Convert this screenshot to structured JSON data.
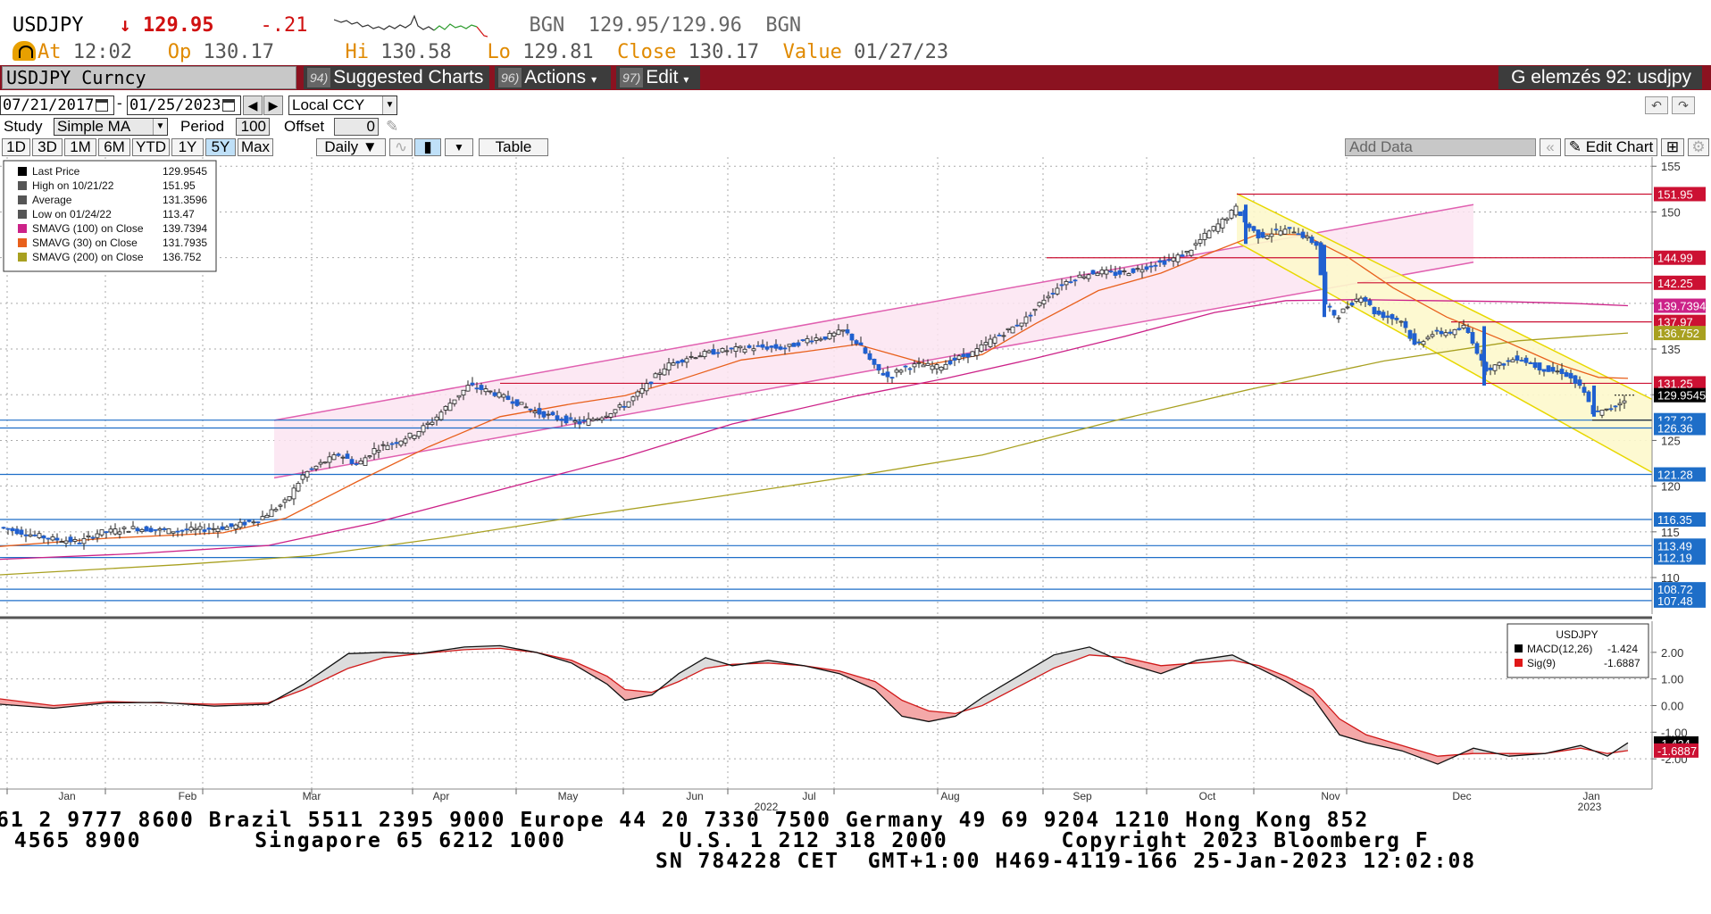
{
  "header": {
    "ticker": "USDJPY",
    "arrow": "↓",
    "last": "129.95",
    "change": "-.21",
    "source": "BGN",
    "bid_ask": "129.95/129.96",
    "source2": "BGN",
    "at_label": "At",
    "at_value": "12:02",
    "open_label": "Op",
    "open_value": "130.17",
    "high_label": "Hi",
    "high_value": "130.58",
    "low_label": "Lo",
    "low_value": "129.81",
    "close_label": "Close",
    "close_value": "130.17",
    "value_label": "Value",
    "value_date": "01/27/23"
  },
  "toolbar": {
    "security": "USDJPY Curncy",
    "suggested_num": "94)",
    "suggested_label": "Suggested Charts",
    "actions_num": "96)",
    "actions_label": "Actions",
    "edit_num": "97)",
    "edit_label": "Edit",
    "title": "G elemzés 92: usdjpy"
  },
  "controls": {
    "start_date": "07/21/2017",
    "dash": "-",
    "end_date": "01/25/2023",
    "currency": "Local CCY",
    "study_label": "Study",
    "study_value": "Simple MA",
    "period_label": "Period",
    "period_value": "100",
    "offset_label": "Offset",
    "offset_value": "0",
    "ranges": [
      "1D",
      "3D",
      "1M",
      "6M",
      "YTD",
      "1Y",
      "5Y",
      "Max"
    ],
    "active_range": "5Y",
    "frequency": "Daily",
    "table_label": "Table",
    "add_data": "Add Data",
    "edit_chart": "Edit Chart"
  },
  "legend": {
    "items": [
      {
        "label": "Last Price",
        "value": "129.9545",
        "color": "#000000"
      },
      {
        "label": "High on 10/21/22",
        "value": "151.95",
        "color": "#555555"
      },
      {
        "label": "Average",
        "value": "131.3596",
        "color": "#555555"
      },
      {
        "label": "Low on 01/24/22",
        "value": "113.47",
        "color": "#555555"
      },
      {
        "label": "SMAVG (100)  on Close",
        "value": "139.7394",
        "color": "#cc2288"
      },
      {
        "label": "SMAVG (30)  on Close",
        "value": "131.7935",
        "color": "#e8601c"
      },
      {
        "label": "SMAVG (200)  on Close",
        "value": "136.752",
        "color": "#a8a020"
      }
    ]
  },
  "macd_legend": {
    "title": "USDJPY",
    "macd_label": "MACD(12,26)",
    "macd_value": "-1.424",
    "sig_label": "Sig(9)",
    "sig_value": "-1.6887"
  },
  "chart_data": {
    "type": "candlestick",
    "title": "USDJPY",
    "price_axis": {
      "range": [
        106,
        156
      ],
      "ticks": [
        110,
        115,
        120,
        125,
        130,
        135,
        140,
        145,
        150,
        155
      ]
    },
    "x_labels": [
      "Jan",
      "Feb",
      "Mar",
      "Apr",
      "May",
      "Jun",
      "Jul",
      "Aug",
      "Sep",
      "Oct",
      "Nov",
      "Dec",
      "Jan"
    ],
    "year_labels": [
      "2022",
      "2023"
    ],
    "last_price": 129.9545,
    "horizontal_levels_red": [
      "151.95",
      "144.99",
      "142.25",
      "137.97",
      "131.25"
    ],
    "horizontal_levels_blue": [
      "127.22",
      "126.36",
      "121.28",
      "116.35",
      "113.49",
      "112.19",
      "108.72",
      "107.48"
    ],
    "price_tags": [
      {
        "text": "151.95",
        "value": 151.95,
        "color": "#cc1133"
      },
      {
        "text": "144.99",
        "value": 144.99,
        "color": "#cc1133"
      },
      {
        "text": "142.25",
        "value": 142.25,
        "color": "#cc1133"
      },
      {
        "text": "139.7394",
        "value": 139.7394,
        "color": "#cc2288"
      },
      {
        "text": "137.97",
        "value": 137.97,
        "color": "#cc1133"
      },
      {
        "text": "136.752",
        "value": 136.752,
        "color": "#a8a020"
      },
      {
        "text": "131.25",
        "value": 131.25,
        "color": "#cc1133"
      },
      {
        "text": "129.9545",
        "value": 129.9545,
        "color": "#000000"
      },
      {
        "text": "127.22",
        "value": 127.22,
        "color": "#1e6ec8"
      },
      {
        "text": "126.36",
        "value": 126.36,
        "color": "#1e6ec8"
      },
      {
        "text": "121.28",
        "value": 121.28,
        "color": "#1e6ec8"
      },
      {
        "text": "116.35",
        "value": 116.35,
        "color": "#1e6ec8"
      },
      {
        "text": "113.49",
        "value": 113.49,
        "color": "#1e6ec8"
      },
      {
        "text": "112.19",
        "value": 112.19,
        "color": "#1e6ec8"
      },
      {
        "text": "108.72",
        "value": 108.72,
        "color": "#1e6ec8"
      },
      {
        "text": "107.48",
        "value": 107.48,
        "color": "#1e6ec8"
      }
    ],
    "price_path": [
      [
        0,
        115.5
      ],
      [
        30,
        114.8
      ],
      [
        60,
        114.2
      ],
      [
        90,
        113.9
      ],
      [
        110,
        114.9
      ],
      [
        150,
        115.4
      ],
      [
        190,
        115.1
      ],
      [
        230,
        115.3
      ],
      [
        262,
        115.6
      ],
      [
        290,
        116.4
      ],
      [
        320,
        118.3
      ],
      [
        340,
        121.3
      ],
      [
        360,
        122.5
      ],
      [
        380,
        123.5
      ],
      [
        400,
        122.3
      ],
      [
        420,
        124.1
      ],
      [
        445,
        124.9
      ],
      [
        465,
        125.8
      ],
      [
        485,
        127.2
      ],
      [
        505,
        129.2
      ],
      [
        525,
        131.0
      ],
      [
        550,
        130.3
      ],
      [
        575,
        129.3
      ],
      [
        600,
        128.1
      ],
      [
        625,
        127.4
      ],
      [
        650,
        126.9
      ],
      [
        675,
        127.7
      ],
      [
        700,
        128.9
      ],
      [
        720,
        130.6
      ],
      [
        745,
        133.1
      ],
      [
        770,
        134.1
      ],
      [
        800,
        134.7
      ],
      [
        825,
        135.0
      ],
      [
        850,
        135.2
      ],
      [
        880,
        135.1
      ],
      [
        905,
        136.1
      ],
      [
        925,
        136.3
      ],
      [
        945,
        137.0
      ],
      [
        965,
        135.1
      ],
      [
        980,
        132.9
      ],
      [
        995,
        131.9
      ],
      [
        1010,
        132.9
      ],
      [
        1030,
        133.3
      ],
      [
        1050,
        133.0
      ],
      [
        1070,
        133.9
      ],
      [
        1090,
        134.6
      ],
      [
        1110,
        136.0
      ],
      [
        1130,
        137.1
      ],
      [
        1150,
        138.4
      ],
      [
        1170,
        140.6
      ],
      [
        1190,
        142.2
      ],
      [
        1210,
        143.0
      ],
      [
        1230,
        143.5
      ],
      [
        1250,
        143.2
      ],
      [
        1270,
        143.6
      ],
      [
        1290,
        144.2
      ],
      [
        1310,
        144.7
      ],
      [
        1330,
        145.6
      ],
      [
        1350,
        147.5
      ],
      [
        1370,
        149.1
      ],
      [
        1385,
        150.5
      ],
      [
        1395,
        148.7
      ],
      [
        1410,
        147.3
      ],
      [
        1430,
        147.9
      ],
      [
        1450,
        148.0
      ],
      [
        1465,
        147.0
      ],
      [
        1475,
        146.4
      ],
      [
        1483,
        139.9
      ],
      [
        1497,
        138.5
      ],
      [
        1510,
        139.8
      ],
      [
        1525,
        140.9
      ],
      [
        1540,
        138.9
      ],
      [
        1555,
        138.5
      ],
      [
        1570,
        138.1
      ],
      [
        1585,
        135.2
      ],
      [
        1600,
        136.6
      ],
      [
        1615,
        136.8
      ],
      [
        1630,
        136.9
      ],
      [
        1640,
        137.5
      ],
      [
        1650,
        135.7
      ],
      [
        1662,
        132.8
      ],
      [
        1680,
        133.3
      ],
      [
        1700,
        134.1
      ],
      [
        1720,
        133.1
      ],
      [
        1735,
        132.6
      ],
      [
        1750,
        132.5
      ],
      [
        1760,
        131.7
      ],
      [
        1772,
        130.5
      ],
      [
        1785,
        127.9
      ],
      [
        1800,
        128.3
      ],
      [
        1815,
        129.2
      ],
      [
        1823,
        129.9545
      ]
    ],
    "ma_30": [
      [
        0,
        113.4
      ],
      [
        120,
        114.3
      ],
      [
        250,
        114.9
      ],
      [
        320,
        116.5
      ],
      [
        400,
        120.5
      ],
      [
        480,
        124.3
      ],
      [
        560,
        127.6
      ],
      [
        640,
        129.0
      ],
      [
        700,
        129.9
      ],
      [
        760,
        131.6
      ],
      [
        830,
        133.8
      ],
      [
        900,
        134.7
      ],
      [
        960,
        135.5
      ],
      [
        1040,
        133.3
      ],
      [
        1100,
        134.4
      ],
      [
        1160,
        137.8
      ],
      [
        1230,
        141.4
      ],
      [
        1300,
        143.3
      ],
      [
        1360,
        145.7
      ],
      [
        1410,
        147.6
      ],
      [
        1460,
        147.5
      ],
      [
        1510,
        145.0
      ],
      [
        1560,
        141.7
      ],
      [
        1620,
        138.5
      ],
      [
        1680,
        136.1
      ],
      [
        1740,
        133.5
      ],
      [
        1790,
        131.9
      ],
      [
        1823,
        131.79
      ]
    ],
    "ma_100": [
      [
        0,
        112.0
      ],
      [
        150,
        112.6
      ],
      [
        300,
        113.5
      ],
      [
        420,
        116.0
      ],
      [
        560,
        119.6
      ],
      [
        700,
        123.2
      ],
      [
        820,
        126.8
      ],
      [
        960,
        129.9
      ],
      [
        1060,
        131.8
      ],
      [
        1160,
        134.0
      ],
      [
        1260,
        136.4
      ],
      [
        1360,
        139.0
      ],
      [
        1440,
        140.3
      ],
      [
        1520,
        140.4
      ],
      [
        1600,
        140.3
      ],
      [
        1680,
        140.2
      ],
      [
        1760,
        140.0
      ],
      [
        1823,
        139.74
      ]
    ],
    "ma_200": [
      [
        0,
        110.3
      ],
      [
        200,
        111.4
      ],
      [
        350,
        112.4
      ],
      [
        500,
        114.4
      ],
      [
        650,
        116.7
      ],
      [
        800,
        118.8
      ],
      [
        950,
        121.0
      ],
      [
        1100,
        123.4
      ],
      [
        1250,
        127.2
      ],
      [
        1400,
        130.6
      ],
      [
        1550,
        133.7
      ],
      [
        1700,
        135.9
      ],
      [
        1823,
        136.75
      ]
    ],
    "channel_up": {
      "start": [
        307,
        127.2
      ],
      "end": [
        1650,
        150.8
      ],
      "width": 6.3
    },
    "channel_down": {
      "start": [
        1385,
        152.0
      ],
      "end": [
        1850,
        121.5
      ],
      "width": 5.3
    },
    "macd": {
      "axis": {
        "range": [
          -2.8,
          2.9
        ],
        "ticks": [
          "2.00",
          "1.00",
          "0.00",
          "-1.00",
          "-2.00"
        ]
      },
      "macd_line": [
        [
          0,
          0.05
        ],
        [
          60,
          -0.1
        ],
        [
          120,
          0.1
        ],
        [
          180,
          0.12
        ],
        [
          240,
          -0.02
        ],
        [
          300,
          0.05
        ],
        [
          340,
          0.8
        ],
        [
          390,
          1.95
        ],
        [
          430,
          2.0
        ],
        [
          470,
          1.95
        ],
        [
          520,
          2.2
        ],
        [
          560,
          2.25
        ],
        [
          600,
          2.0
        ],
        [
          640,
          1.6
        ],
        [
          680,
          0.8
        ],
        [
          700,
          0.2
        ],
        [
          730,
          0.4
        ],
        [
          760,
          1.2
        ],
        [
          790,
          1.8
        ],
        [
          820,
          1.5
        ],
        [
          860,
          1.7
        ],
        [
          900,
          1.5
        ],
        [
          940,
          1.2
        ],
        [
          980,
          0.6
        ],
        [
          1010,
          -0.4
        ],
        [
          1040,
          -0.6
        ],
        [
          1070,
          -0.4
        ],
        [
          1100,
          0.3
        ],
        [
          1140,
          1.1
        ],
        [
          1180,
          1.9
        ],
        [
          1220,
          2.2
        ],
        [
          1260,
          1.6
        ],
        [
          1300,
          1.2
        ],
        [
          1340,
          1.7
        ],
        [
          1380,
          1.9
        ],
        [
          1410,
          1.4
        ],
        [
          1440,
          0.9
        ],
        [
          1470,
          0.3
        ],
        [
          1500,
          -1.1
        ],
        [
          1530,
          -1.4
        ],
        [
          1570,
          -1.7
        ],
        [
          1610,
          -2.2
        ],
        [
          1650,
          -1.6
        ],
        [
          1690,
          -1.9
        ],
        [
          1730,
          -1.8
        ],
        [
          1770,
          -1.5
        ],
        [
          1800,
          -1.9
        ],
        [
          1823,
          -1.4
        ]
      ],
      "signal_line": [
        [
          0,
          0.25
        ],
        [
          60,
          0.0
        ],
        [
          120,
          0.15
        ],
        [
          180,
          0.1
        ],
        [
          240,
          0.05
        ],
        [
          300,
          0.1
        ],
        [
          340,
          0.6
        ],
        [
          390,
          1.4
        ],
        [
          430,
          1.8
        ],
        [
          470,
          1.95
        ],
        [
          520,
          2.1
        ],
        [
          560,
          2.15
        ],
        [
          600,
          2.0
        ],
        [
          640,
          1.7
        ],
        [
          680,
          1.1
        ],
        [
          700,
          0.6
        ],
        [
          730,
          0.5
        ],
        [
          760,
          0.9
        ],
        [
          790,
          1.4
        ],
        [
          820,
          1.55
        ],
        [
          860,
          1.6
        ],
        [
          900,
          1.5
        ],
        [
          940,
          1.3
        ],
        [
          980,
          0.9
        ],
        [
          1010,
          0.2
        ],
        [
          1040,
          -0.2
        ],
        [
          1070,
          -0.3
        ],
        [
          1100,
          0.0
        ],
        [
          1140,
          0.7
        ],
        [
          1180,
          1.4
        ],
        [
          1220,
          1.9
        ],
        [
          1260,
          1.8
        ],
        [
          1300,
          1.5
        ],
        [
          1340,
          1.6
        ],
        [
          1380,
          1.7
        ],
        [
          1410,
          1.5
        ],
        [
          1440,
          1.1
        ],
        [
          1470,
          0.6
        ],
        [
          1500,
          -0.5
        ],
        [
          1530,
          -1.1
        ],
        [
          1570,
          -1.5
        ],
        [
          1610,
          -1.9
        ],
        [
          1650,
          -1.8
        ],
        [
          1690,
          -1.8
        ],
        [
          1730,
          -1.8
        ],
        [
          1770,
          -1.6
        ],
        [
          1800,
          -1.8
        ],
        [
          1823,
          -1.6887
        ]
      ],
      "last_tags": [
        {
          "text": "-1.424",
          "color": "#000000",
          "value": -1.424
        },
        {
          "text": "-1.6887",
          "color": "#cc1133",
          "value": -1.6887
        }
      ]
    }
  },
  "footer": {
    "line1": "61 2 9777 8600 Brazil 5511 2395 9000 Europe 44 20 7330 7500 Germany 49 69 9204 1210 Hong Kong 852",
    "line2": " 4565 8900        Singapore 65 6212 1000        U.S. 1 212 318 2000        Copyright 2023 Bloomberg F",
    "line3": "SN 784228 CET  GMT+1:00 H469-4119-166 25-Jan-2023 12:02:08"
  }
}
